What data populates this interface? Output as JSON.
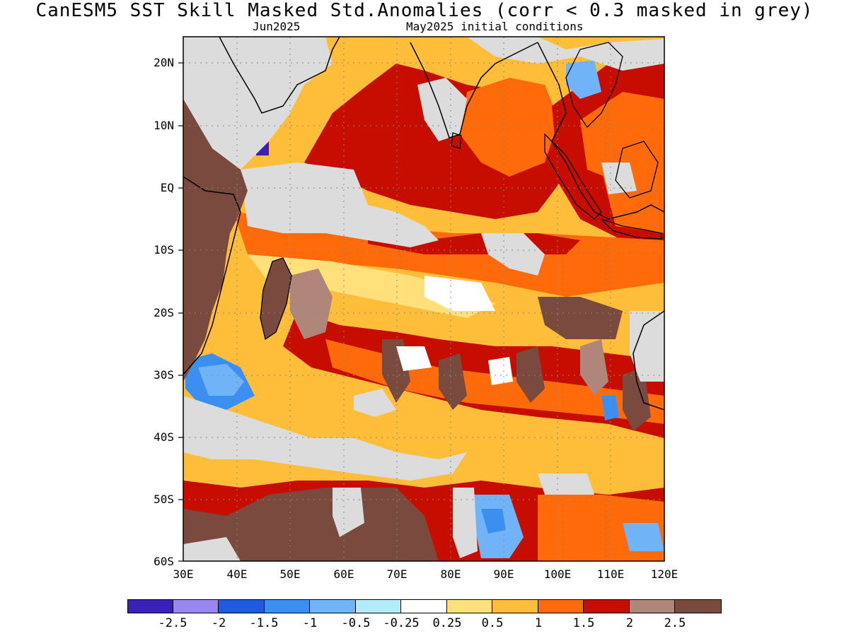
{
  "header": {
    "title": "CanESM5  SST Skill Masked Std.Anomalies (corr < 0.3 masked in grey)",
    "target_month": "Jun2025",
    "init": "May2025 initial conditions"
  },
  "axes": {
    "lat_labels": [
      "20N",
      "10N",
      "EQ",
      "10S",
      "20S",
      "30S",
      "40S",
      "50S",
      "60S"
    ],
    "lon_labels": [
      "30E",
      "40E",
      "50E",
      "60E",
      "70E",
      "80E",
      "90E",
      "100E",
      "110E",
      "120E"
    ]
  },
  "colorbar": {
    "colors": [
      "#3a1fb8",
      "#9a86f0",
      "#1e5be0",
      "#3b8ff0",
      "#70b4f7",
      "#b2ecfc",
      "#ffffff",
      "#ffe07a",
      "#ffbe3a",
      "#ff6a0a",
      "#c70d00",
      "#b0867a",
      "#7a4a3e"
    ],
    "labels": [
      "-2.5",
      "-2",
      "-1.5",
      "-1",
      "-0.5",
      "-0.25",
      "0.25",
      "0.5",
      "1",
      "1.5",
      "2",
      "2.5"
    ]
  },
  "colors": {
    "mask": "#dcdcdc",
    "land": "#ffffff",
    "coast": "#000000"
  }
}
